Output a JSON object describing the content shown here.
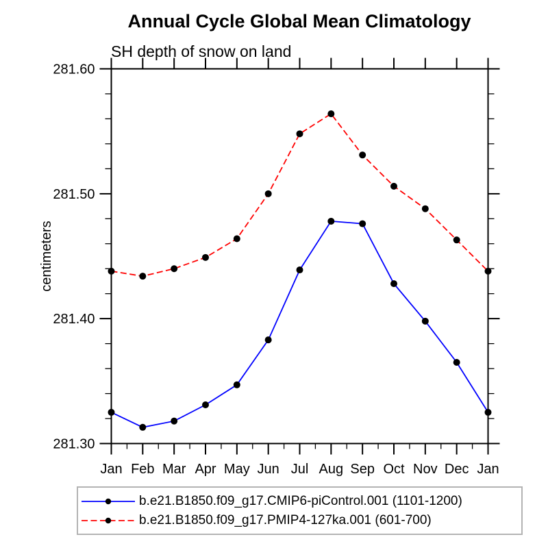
{
  "title": "Annual Cycle Global Mean Climatology",
  "subtitle": "SH depth of snow on land",
  "chart_data": {
    "type": "line",
    "title": "Annual Cycle Global Mean Climatology",
    "subtitle": "SH depth of snow on land",
    "ylabel": "centimeters",
    "xlabel": "",
    "categories": [
      "Jan",
      "Feb",
      "Mar",
      "Apr",
      "May",
      "Jun",
      "Jul",
      "Aug",
      "Sep",
      "Oct",
      "Nov",
      "Dec",
      "Jan"
    ],
    "ylim": [
      281.3,
      281.6
    ],
    "yticks_major": [
      281.3,
      281.4,
      281.5,
      281.6
    ],
    "ytick_labels": [
      "281.30",
      "281.40",
      "281.50",
      "281.60"
    ],
    "ytick_minor_step": 0.02,
    "xtick_minor_step": 0.5,
    "grid": false,
    "legend_position": "bottom",
    "frame_color": "#000000",
    "series": [
      {
        "name": "b.e21.B1850.f09_g17.CMIP6-piControl.001 (1101-1200)",
        "color": "#0000ff",
        "line_style": "solid",
        "marker": "circle",
        "marker_color": "#000000",
        "values": [
          281.325,
          281.313,
          281.318,
          281.331,
          281.347,
          281.383,
          281.439,
          281.478,
          281.476,
          281.428,
          281.398,
          281.365,
          281.325
        ]
      },
      {
        "name": "b.e21.B1850.f09_g17.PMIP4-127ka.001 (601-700)",
        "color": "#ff0000",
        "line_style": "dashed",
        "marker": "circle",
        "marker_color": "#000000",
        "values": [
          281.438,
          281.434,
          281.44,
          281.449,
          281.464,
          281.5,
          281.548,
          281.564,
          281.531,
          281.506,
          281.488,
          281.463,
          281.438
        ]
      }
    ]
  }
}
